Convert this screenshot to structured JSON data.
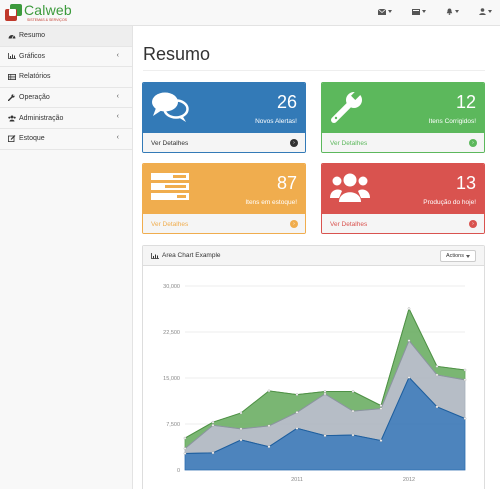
{
  "brand": {
    "name": "Calweb",
    "tagline": "SISTEMAS & SERVIÇOS"
  },
  "navbar": {
    "dropdowns": [
      {
        "name": "envelope-icon"
      },
      {
        "name": "tasks-icon"
      },
      {
        "name": "bell-icon"
      },
      {
        "name": "user-icon"
      }
    ]
  },
  "sidebar": {
    "items": [
      {
        "label": "Resumo",
        "icon": "dashboard-icon",
        "active": true,
        "has_arrow": false
      },
      {
        "label": "Gráficos",
        "icon": "bar-chart-icon",
        "active": false,
        "has_arrow": true
      },
      {
        "label": "Relatórios",
        "icon": "table-icon",
        "active": false,
        "has_arrow": false
      },
      {
        "label": "Operação",
        "icon": "wrench-icon",
        "active": false,
        "has_arrow": true
      },
      {
        "label": "Administração",
        "icon": "users-icon",
        "active": false,
        "has_arrow": true
      },
      {
        "label": "Estoque",
        "icon": "edit-icon",
        "active": false,
        "has_arrow": true
      }
    ],
    "arrow_glyph": "‹"
  },
  "page": {
    "title": "Resumo"
  },
  "panels": [
    {
      "value": "26",
      "label": "Novos Alertas!",
      "link": "Ver Detalhes",
      "color": "#337ab7",
      "icon": "comments-icon"
    },
    {
      "value": "12",
      "label": "Itens Corrigidos!",
      "link": "Ver Detalhes",
      "color": "#5cb85c",
      "icon": "wrench-icon"
    },
    {
      "value": "87",
      "label": "Itens em estoque!",
      "link": "Ver Detalhes",
      "color": "#f0ad4e",
      "icon": "tasks-icon"
    },
    {
      "value": "13",
      "label": "Produção do hoje!",
      "link": "Ver Detalhes",
      "color": "#d9534f",
      "icon": "users-icon"
    }
  ],
  "chart_panel": {
    "title": "Area Chart Example",
    "actions_label": "Actions"
  },
  "chart_data": {
    "type": "area",
    "title": "",
    "y_ticks": [
      "0",
      "7,500",
      "15,000",
      "22,500",
      "30,000"
    ],
    "x_ticks": [
      "2011",
      "2012"
    ],
    "ylim": [
      0,
      30000
    ],
    "x": [
      "2010 Q1",
      "2010 Q2",
      "2010 Q3",
      "2010 Q4",
      "2011 Q1",
      "2011 Q2",
      "2011 Q3",
      "2011 Q4",
      "2012 Q1",
      "2012 Q2",
      "2012 Q3"
    ],
    "x_ticks_index": [
      4,
      8
    ],
    "series": [
      {
        "color": "#2e6fb1",
        "values": [
          2700,
          2800,
          4900,
          3800,
          6800,
          5600,
          5700,
          4800,
          15100,
          10300,
          8400
        ]
      },
      {
        "color": "#a9b2bc",
        "values": [
          800,
          4500,
          1800,
          3400,
          2600,
          6800,
          3900,
          5200,
          6000,
          5200,
          6300
        ]
      },
      {
        "color": "#63a95a",
        "values": [
          1700,
          500,
          2600,
          5700,
          2900,
          400,
          3200,
          500,
          5200,
          1400,
          1600
        ]
      }
    ],
    "grid": true,
    "legend": "none"
  }
}
